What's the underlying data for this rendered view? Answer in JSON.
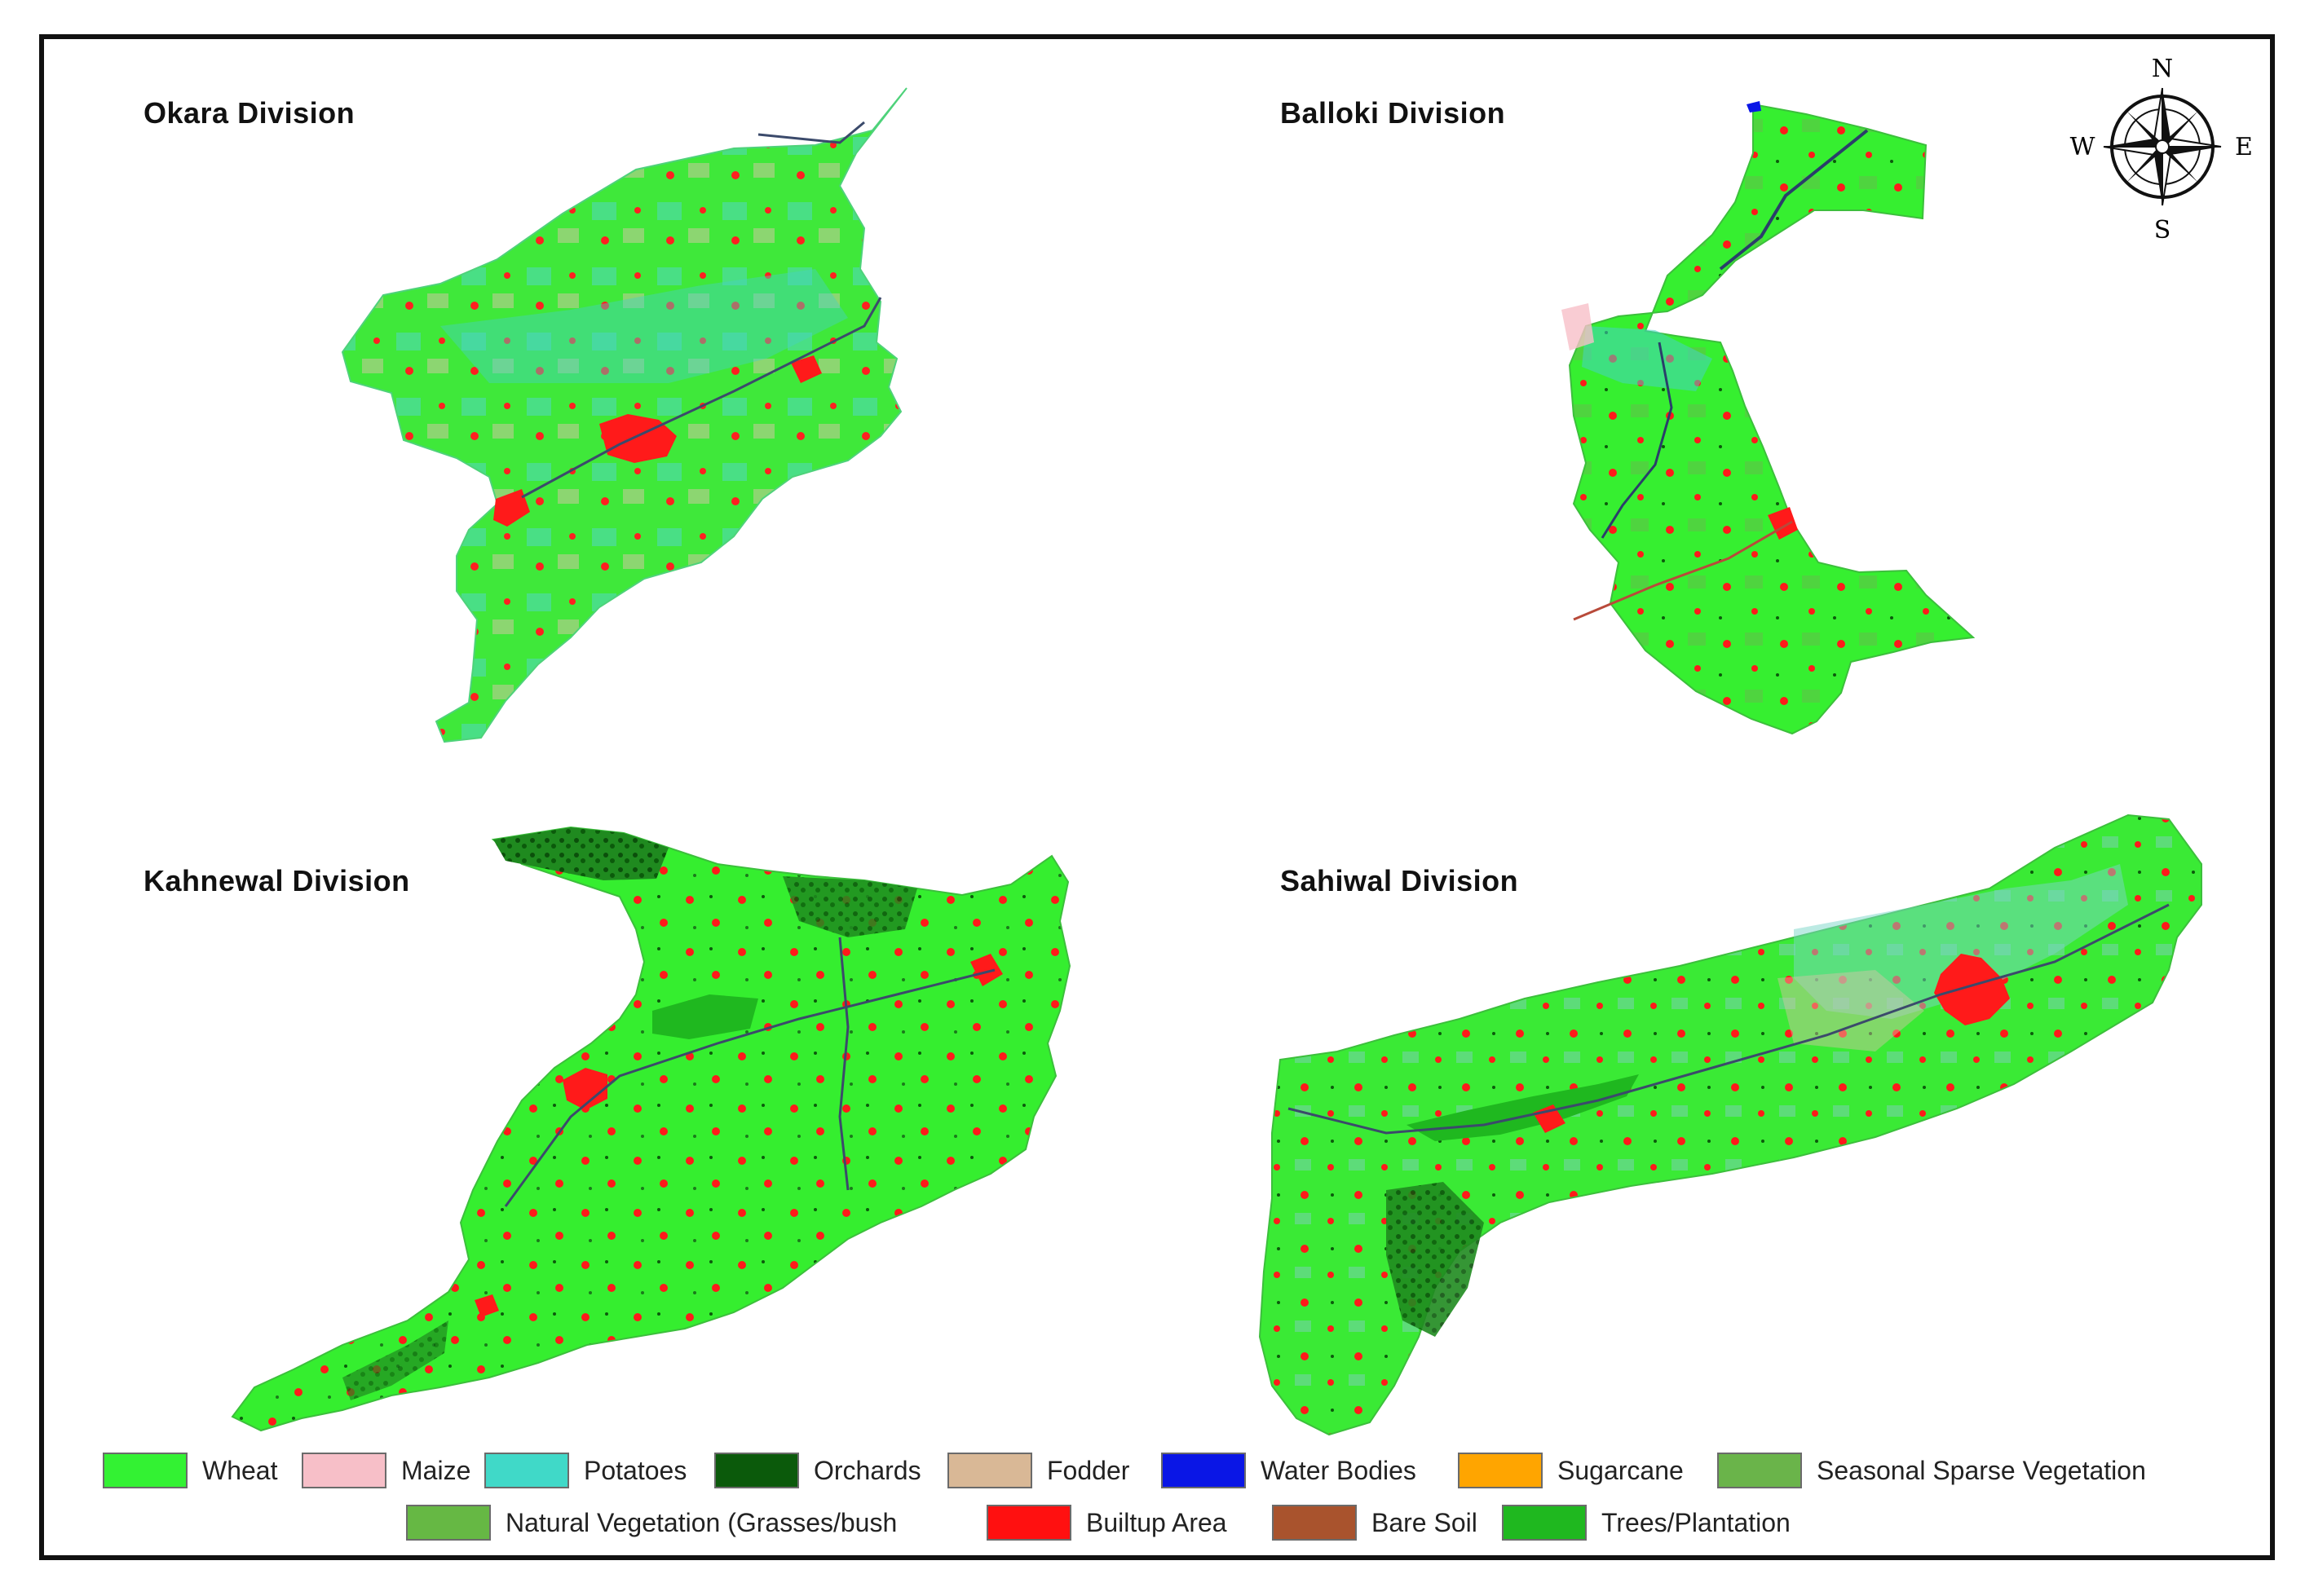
{
  "divisions": [
    {
      "id": "okara",
      "title": "Okara Division"
    },
    {
      "id": "balloki",
      "title": "Balloki Division"
    },
    {
      "id": "kahnewal",
      "title": "Kahnewal Division"
    },
    {
      "id": "sahiwal",
      "title": "Sahiwal Division"
    }
  ],
  "compass": {
    "north": "N",
    "south": "S",
    "east": "E",
    "west": "W"
  },
  "colors": {
    "wheat": "#33f233",
    "maize": "#f7bfc8",
    "potatoes": "#40d9c8",
    "orchards": "#0b5a0b",
    "fodder": "#d9b896",
    "water": "#0a16e6",
    "sugarcane": "#ffa500",
    "seasonal": "#6ab44a",
    "natural": "#66b844",
    "builtup": "#ff1010",
    "baresoil": "#a9532d",
    "trees": "#1fb81f",
    "road": "#3b4a6b"
  },
  "legend": {
    "row1": [
      {
        "label": "Wheat",
        "color": "#33f233"
      },
      {
        "label": "Maize",
        "color": "#f7bfc8"
      },
      {
        "label": "Potatoes",
        "color": "#40d9c8"
      },
      {
        "label": "Orchards",
        "color": "#0b5a0b"
      },
      {
        "label": "Fodder",
        "color": "#d9b896"
      },
      {
        "label": "Water Bodies",
        "color": "#0a16e6"
      },
      {
        "label": "Sugarcane",
        "color": "#ffa500"
      },
      {
        "label": "Seasonal Sparse Vegetation",
        "color": "#6ab44a"
      }
    ],
    "row2": [
      {
        "label": "Natural Vegetation (Grasses/bush",
        "color": "#66b844"
      },
      {
        "label": "Builtup Area",
        "color": "#ff1010"
      },
      {
        "label": "Bare Soil",
        "color": "#a9532d"
      },
      {
        "label": "Trees/Plantation",
        "color": "#1fb81f"
      }
    ]
  }
}
